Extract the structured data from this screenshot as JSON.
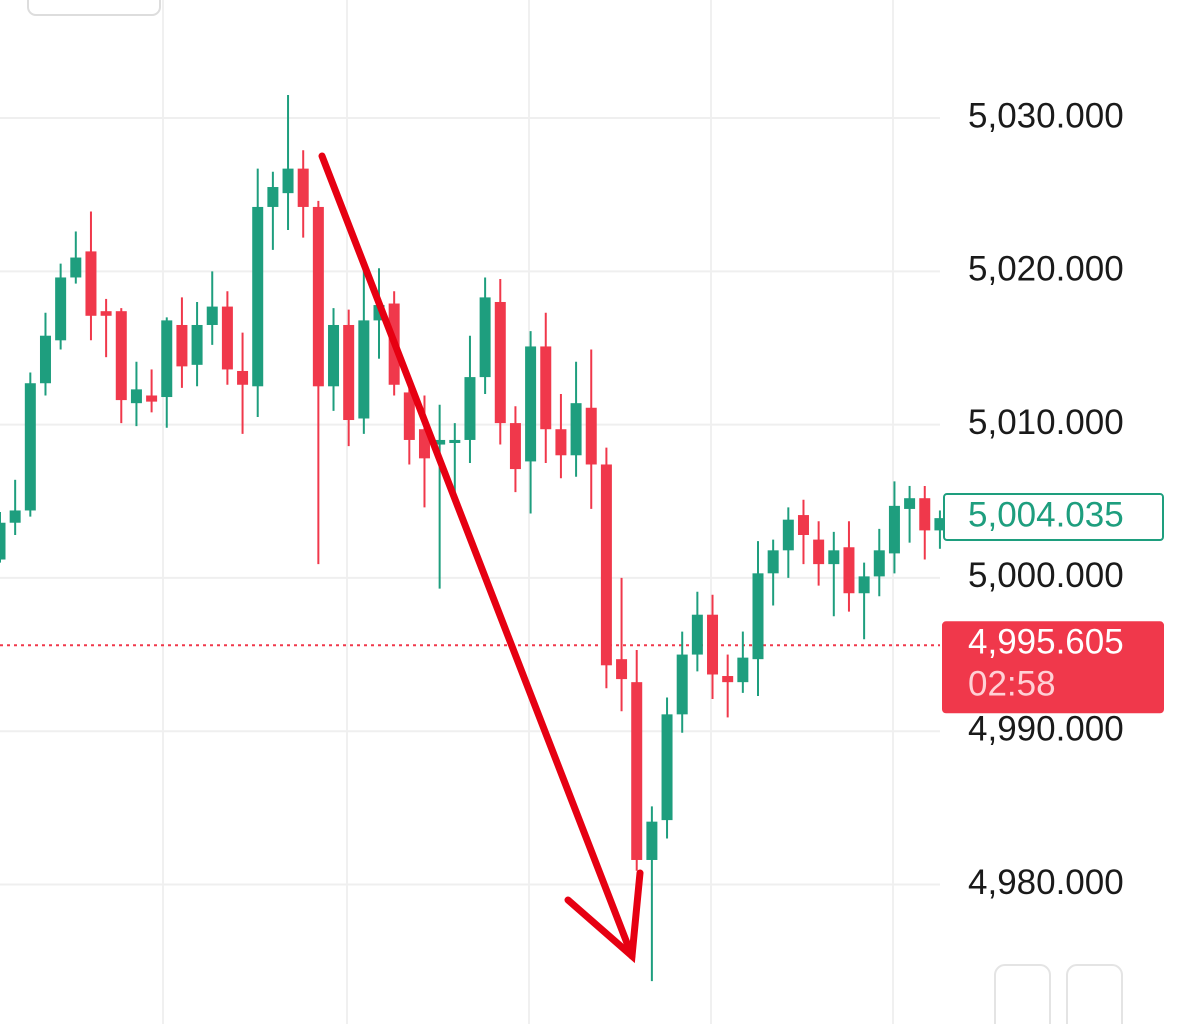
{
  "chart_data": {
    "type": "candlestick",
    "open": [
      5001.2,
      5003.6,
      5004.4,
      5012.7,
      5015.5,
      5019.6,
      5021.3,
      5017.4,
      5017.4,
      5011.4,
      5011.9,
      5011.8,
      5016.5,
      5013.9,
      5016.5,
      5017.7,
      5013.5,
      5012.5,
      5024.2,
      5025.1,
      5026.7,
      5024.2,
      5012.5,
      5016.5,
      5010.4,
      5016.8,
      5017.9,
      5012.1,
      5009.7,
      5008.7,
      5008.8,
      5009.0,
      5013.1,
      5018.0,
      5010.1,
      5007.6,
      5015.1,
      5009.7,
      5008.0,
      5011.1,
      5007.4,
      4994.7,
      4993.2,
      4981.6,
      4984.2,
      4991.1,
      4995.0,
      4997.6,
      4993.6,
      4993.2,
      4994.7,
      5000.3,
      5001.8,
      5004.1,
      5002.5,
      5000.9,
      5002.0,
      4999.0,
      5000.1,
      5001.6,
      5004.5,
      5005.2,
      5003.1
    ],
    "high": [
      5004.3,
      5006.4,
      5013.4,
      5017.3,
      5020.5,
      5022.6,
      5023.9,
      5018.2,
      5017.6,
      5014.1,
      5013.6,
      5017.0,
      5018.3,
      5018.0,
      5020.0,
      5018.7,
      5016.0,
      5026.7,
      5026.5,
      5031.5,
      5027.9,
      5024.6,
      5017.6,
      5017.5,
      5020.6,
      5020.2,
      5018.7,
      5013.2,
      5011.9,
      5011.3,
      5010.1,
      5015.8,
      5019.6,
      5019.5,
      5011.2,
      5016.1,
      5017.3,
      5012.0,
      5014.1,
      5014.9,
      5008.5,
      5000.0,
      4995.3,
      4985.1,
      4992.2,
      4996.5,
      4999.1,
      4998.9,
      4995.0,
      4996.5,
      5002.4,
      5002.5,
      5004.6,
      5005.1,
      5003.7,
      5003.0,
      5003.7,
      5001.0,
      5003.2,
      5006.3,
      5006.0,
      5006.0,
      5004.4
    ],
    "low": [
      5001.0,
      5002.8,
      5004.0,
      5011.9,
      5014.9,
      5019.2,
      5015.5,
      5014.4,
      5010.1,
      5009.9,
      5010.8,
      5009.8,
      5012.4,
      5012.5,
      5015.2,
      5012.6,
      5009.4,
      5010.5,
      5021.4,
      5022.7,
      5022.2,
      5000.9,
      5010.9,
      5008.6,
      5009.4,
      5014.3,
      5011.9,
      5007.4,
      5004.6,
      4999.3,
      5005.0,
      5007.5,
      5012.0,
      5008.7,
      5005.6,
      5004.2,
      5007.5,
      5006.5,
      5006.6,
      5004.5,
      4992.8,
      4991.3,
      4980.9,
      4973.7,
      4983.0,
      4989.9,
      4993.9,
      4992.1,
      4990.9,
      4992.5,
      4992.3,
      4998.2,
      5000.0,
      5000.9,
      4999.5,
      4997.5,
      4997.8,
      4996.0,
      4998.8,
      5000.3,
      5002.3,
      5001.2,
      5001.9
    ],
    "close": [
      5003.6,
      5004.4,
      5012.7,
      5015.8,
      5019.6,
      5020.9,
      5017.1,
      5017.1,
      5011.6,
      5012.3,
      5011.5,
      5016.8,
      5013.8,
      5016.5,
      5017.7,
      5013.6,
      5012.6,
      5024.2,
      5025.5,
      5026.7,
      5024.2,
      5012.5,
      5016.5,
      5010.3,
      5016.8,
      5017.8,
      5012.6,
      5009.0,
      5007.8,
      5009.0,
      5009.0,
      5013.1,
      5018.3,
      5010.1,
      5007.1,
      5015.1,
      5009.7,
      5008.0,
      5011.4,
      5007.4,
      4994.3,
      4993.4,
      4981.6,
      4984.1,
      4991.1,
      4995.0,
      4997.6,
      4993.7,
      4993.2,
      4994.8,
      5000.3,
      5001.8,
      5003.8,
      5002.8,
      5000.9,
      5001.8,
      4999.0,
      5000.1,
      5001.8,
      5004.7,
      5005.2,
      5003.1,
      5003.9
    ],
    "up_color": "#1e9e7e",
    "down_color": "#f0384b",
    "ylim": [
      4970.9,
      5037.7
    ],
    "yticks": [
      {
        "value": 4980,
        "label": "4,980.000"
      },
      {
        "value": 4990,
        "label": "4,990.000"
      },
      {
        "value": 5000,
        "label": "5,000.000"
      },
      {
        "value": 5010,
        "label": "5,010.000"
      },
      {
        "value": 5020,
        "label": "5,020.000"
      },
      {
        "value": 5030,
        "label": "5,030.000"
      }
    ],
    "grid": true,
    "price_markers": [
      {
        "value": 5004.035,
        "label": "5,004.035",
        "style": "outline",
        "color": "#1e9e7e"
      },
      {
        "value": 4995.605,
        "label": "4,995.605",
        "style": "filled",
        "color": "#f0384b",
        "countdown": "02:58",
        "line": "dotted"
      }
    ]
  }
}
